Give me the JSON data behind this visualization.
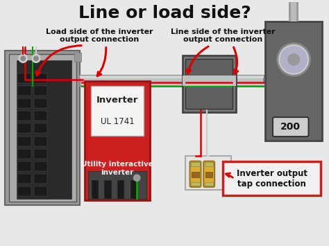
{
  "title": "Line or load side?",
  "title_fontsize": 18,
  "title_fontweight": "bold",
  "bg_color": "#e8e8e8",
  "label_load": "Load side of the inverter\noutput connection",
  "label_line": "Line side of the inverter\noutput connection",
  "label_tap": "Inverter output\ntap connection",
  "label_inverter": "Inverter",
  "label_ul": "UL 1741",
  "label_utility": "Utility interactive\ninverter",
  "label_200": "200",
  "panel_outer_color": "#888888",
  "panel_mid_color": "#aaaaaa",
  "panel_inner_color": "#333333",
  "inverter_color": "#cc2020",
  "inverter_label_bg": "#f5f5f5",
  "junction_box_color": "#707070",
  "junction_inner_color": "#555555",
  "meter_box_color": "#666666",
  "tap_label_bg": "#f0f0f0",
  "tap_label_border": "#cc2020",
  "conduit_color": "#b0b0b0",
  "wire_red": "#dd0000",
  "wire_white": "#cccccc",
  "wire_green": "#00aa00",
  "text_color": "#111111",
  "label_fontsize": 8.0,
  "annotation_lw": 2.2
}
